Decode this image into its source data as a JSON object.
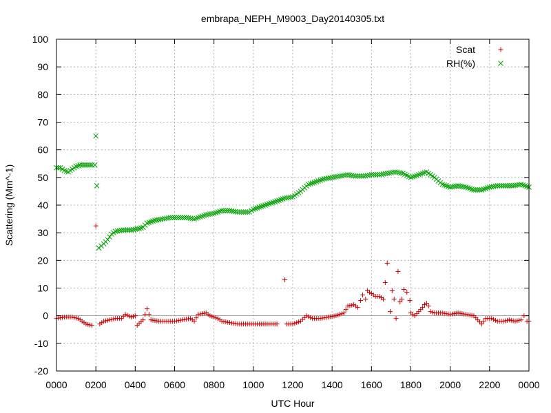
{
  "chart_data": {
    "type": "scatter",
    "title": "embrapa_NEPH_M9003_Day20140305.txt",
    "xlabel": "UTC Hour",
    "ylabel": "Scattering (Mm^-1)",
    "xlim": [
      0,
      2400
    ],
    "ylim": [
      -20,
      100
    ],
    "x_ticks": [
      "0000",
      "0200",
      "0400",
      "0600",
      "0800",
      "1000",
      "1200",
      "1400",
      "1600",
      "1800",
      "2000",
      "2200",
      "0000"
    ],
    "y_ticks": [
      "-20",
      "-10",
      "0",
      "10",
      "20",
      "30",
      "40",
      "50",
      "60",
      "70",
      "80",
      "90",
      "100"
    ],
    "grid": true,
    "legend_position": "top-right",
    "series": [
      {
        "name": "Scat",
        "marker": "+",
        "color": "#cc0000",
        "points": [
          [
            0,
            -1
          ],
          [
            40,
            -0.5
          ],
          [
            80,
            -0.5
          ],
          [
            110,
            -1
          ],
          [
            130,
            -2
          ],
          [
            150,
            -3
          ],
          [
            180,
            -3.5
          ],
          [
            200,
            32.5
          ],
          [
            220,
            -3
          ],
          [
            240,
            -2
          ],
          [
            270,
            -1.5
          ],
          [
            300,
            -1
          ],
          [
            330,
            -1
          ],
          [
            350,
            0.5
          ],
          [
            380,
            -0.5
          ],
          [
            400,
            0
          ],
          [
            410,
            -3.5
          ],
          [
            440,
            -1.5
          ],
          [
            460,
            2.5
          ],
          [
            480,
            -1.5
          ],
          [
            520,
            -2
          ],
          [
            560,
            -2
          ],
          [
            600,
            -2
          ],
          [
            640,
            -1.5
          ],
          [
            680,
            -1
          ],
          [
            700,
            -2
          ],
          [
            720,
            0.5
          ],
          [
            760,
            1
          ],
          [
            780,
            0
          ],
          [
            820,
            -1
          ],
          [
            840,
            -2
          ],
          [
            880,
            -2.5
          ],
          [
            920,
            -3
          ],
          [
            960,
            -3
          ],
          [
            1000,
            -3
          ],
          [
            1040,
            -3
          ],
          [
            1080,
            -3
          ],
          [
            1120,
            -3
          ],
          [
            1160,
            13
          ],
          [
            1170,
            -3
          ],
          [
            1200,
            -3
          ],
          [
            1240,
            -2
          ],
          [
            1270,
            0
          ],
          [
            1300,
            -1
          ],
          [
            1340,
            -1
          ],
          [
            1380,
            -0.5
          ],
          [
            1420,
            0
          ],
          [
            1460,
            1
          ],
          [
            1480,
            3.5
          ],
          [
            1510,
            4
          ],
          [
            1530,
            3
          ],
          [
            1545,
            5.5
          ],
          [
            1555,
            7.5
          ],
          [
            1570,
            6
          ],
          [
            1580,
            9
          ],
          [
            1600,
            8
          ],
          [
            1620,
            7
          ],
          [
            1640,
            7
          ],
          [
            1660,
            6
          ],
          [
            1670,
            12
          ],
          [
            1680,
            19
          ],
          [
            1695,
            1.5
          ],
          [
            1705,
            9
          ],
          [
            1715,
            6
          ],
          [
            1725,
            -1
          ],
          [
            1735,
            16
          ],
          [
            1745,
            5
          ],
          [
            1755,
            6
          ],
          [
            1765,
            9.5
          ],
          [
            1780,
            8.5
          ],
          [
            1795,
            5.5
          ],
          [
            1800,
            1
          ],
          [
            1820,
            0
          ],
          [
            1840,
            1.5
          ],
          [
            1860,
            3
          ],
          [
            1870,
            4
          ],
          [
            1880,
            4.5
          ],
          [
            1890,
            3.5
          ],
          [
            1900,
            1.5
          ],
          [
            1920,
            1
          ],
          [
            1960,
            1
          ],
          [
            2000,
            0.5
          ],
          [
            2040,
            1
          ],
          [
            2080,
            0.5
          ],
          [
            2120,
            0
          ],
          [
            2160,
            -3
          ],
          [
            2180,
            -1
          ],
          [
            2210,
            -1
          ],
          [
            2240,
            -2
          ],
          [
            2270,
            -2
          ],
          [
            2300,
            -1.5
          ],
          [
            2330,
            -2
          ],
          [
            2360,
            -1.5
          ],
          [
            2375,
            0
          ],
          [
            2390,
            -2
          ],
          [
            2400,
            -2
          ]
        ]
      },
      {
        "name": "RH(%)",
        "marker": "x",
        "color": "#00a000",
        "points": [
          [
            0,
            53.5
          ],
          [
            20,
            53.5
          ],
          [
            40,
            52.5
          ],
          [
            60,
            52
          ],
          [
            80,
            53
          ],
          [
            100,
            54
          ],
          [
            120,
            54.5
          ],
          [
            140,
            54.5
          ],
          [
            160,
            54.5
          ],
          [
            180,
            54.5
          ],
          [
            195,
            54.5
          ],
          [
            200,
            65
          ],
          [
            205,
            47
          ],
          [
            215,
            24.5
          ],
          [
            240,
            26
          ],
          [
            260,
            27.5
          ],
          [
            280,
            29.5
          ],
          [
            300,
            30.5
          ],
          [
            340,
            31
          ],
          [
            380,
            31
          ],
          [
            420,
            31.5
          ],
          [
            440,
            32
          ],
          [
            460,
            33.5
          ],
          [
            500,
            34.5
          ],
          [
            540,
            35
          ],
          [
            580,
            35.5
          ],
          [
            620,
            35.5
          ],
          [
            660,
            35.5
          ],
          [
            700,
            35
          ],
          [
            720,
            35.5
          ],
          [
            760,
            36.5
          ],
          [
            800,
            37
          ],
          [
            840,
            38
          ],
          [
            880,
            38
          ],
          [
            920,
            37.5
          ],
          [
            960,
            37.5
          ],
          [
            980,
            37.5
          ],
          [
            1000,
            38.5
          ],
          [
            1040,
            39.5
          ],
          [
            1080,
            40.5
          ],
          [
            1120,
            41.5
          ],
          [
            1160,
            42.5
          ],
          [
            1200,
            43
          ],
          [
            1240,
            45
          ],
          [
            1280,
            47.5
          ],
          [
            1320,
            48.5
          ],
          [
            1360,
            49.5
          ],
          [
            1400,
            50
          ],
          [
            1440,
            50.5
          ],
          [
            1480,
            51
          ],
          [
            1520,
            50.5
          ],
          [
            1560,
            50.5
          ],
          [
            1600,
            51
          ],
          [
            1640,
            51
          ],
          [
            1680,
            51.5
          ],
          [
            1720,
            52
          ],
          [
            1760,
            51.5
          ],
          [
            1800,
            50
          ],
          [
            1840,
            51
          ],
          [
            1880,
            52
          ],
          [
            1920,
            50
          ],
          [
            1960,
            47.5
          ],
          [
            2000,
            46.5
          ],
          [
            2040,
            47
          ],
          [
            2080,
            46.5
          ],
          [
            2120,
            45.5
          ],
          [
            2160,
            45.5
          ],
          [
            2200,
            46.5
          ],
          [
            2240,
            47
          ],
          [
            2280,
            47
          ],
          [
            2320,
            47
          ],
          [
            2360,
            47.5
          ],
          [
            2400,
            46.5
          ]
        ]
      }
    ]
  }
}
